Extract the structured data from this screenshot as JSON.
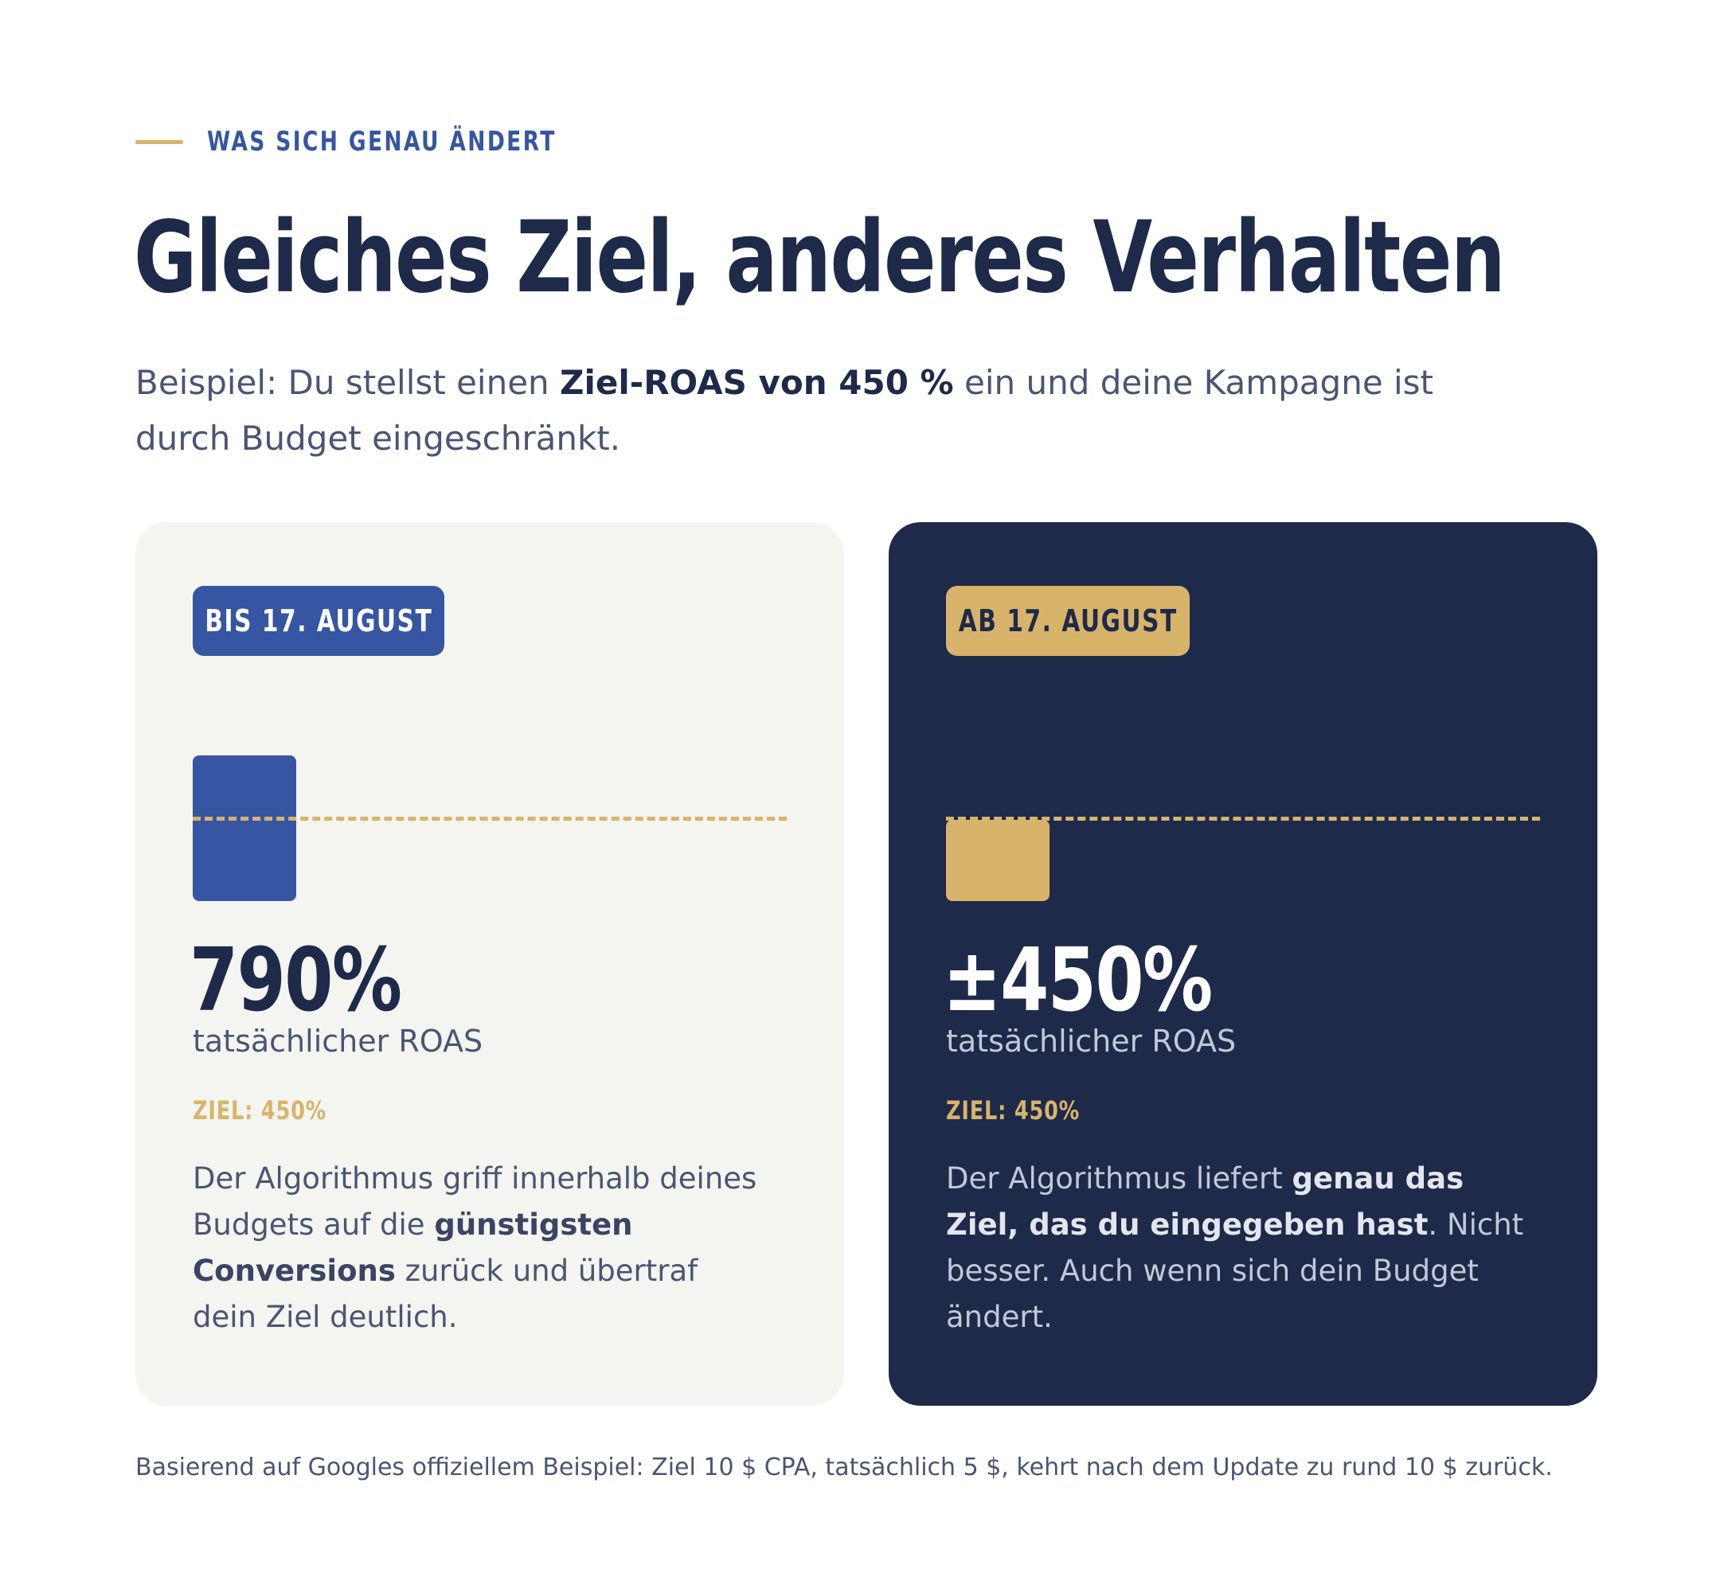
{
  "eyebrow": "WAS SICH GENAU ÄNDERT",
  "title": "Gleiches Ziel, anderes Verhalten",
  "lead": {
    "before": "Beispiel: Du stellst einen ",
    "bold": "Ziel-ROAS von 450 %",
    "after": " ein und deine Kampagne ist durch Budget eingeschränkt."
  },
  "cards": [
    {
      "badge": "BIS 17. AUGUST",
      "bar_value_percent": 790,
      "target_percent": 450,
      "value": "790%",
      "caption": "tatsächlicher ROAS",
      "ziel": "ZIEL: 450%",
      "desc": {
        "p1": "Der Algorithmus griff innerhalb deines Budgets auf die ",
        "b1": "günstigsten Conversions",
        "p2": " zurück und übertraf dein Ziel deutlich."
      }
    },
    {
      "badge": "AB 17. AUGUST",
      "bar_value_percent": 450,
      "target_percent": 450,
      "value": "±450%",
      "caption": "tatsächlicher ROAS",
      "ziel": "ZIEL: 450%",
      "desc": {
        "p1": "Der Algorithmus liefert ",
        "b1": "genau das Ziel, das du eingegeben hast",
        "p2": ". Nicht besser. Auch wenn sich dein Budget ändert."
      }
    }
  ],
  "colors": {
    "navy": "#1e2a4a",
    "blue": "#3656a3",
    "gold": "#d8b46a",
    "card_light": "#f4f4f0"
  },
  "footnote": "Basierend auf Googles offiziellem Beispiel: Ziel 10 $ CPA, tatsächlich 5 $, kehrt nach dem Update zu rund 10 $ zurück."
}
